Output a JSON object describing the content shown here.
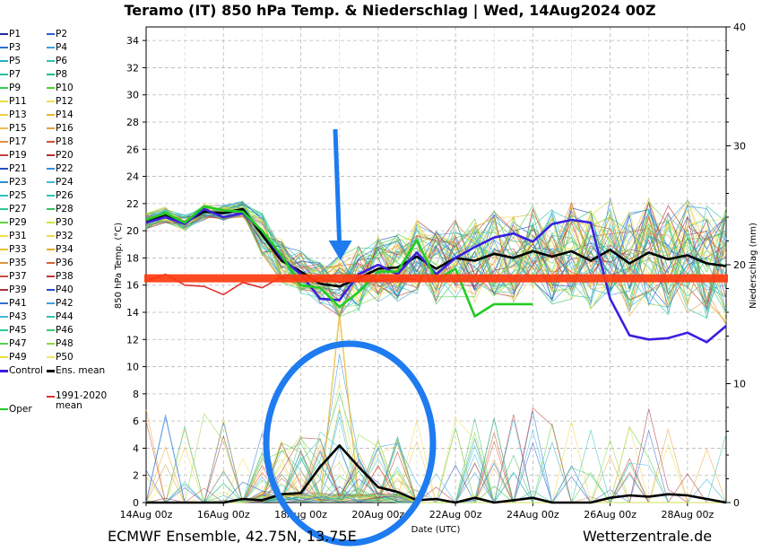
{
  "title": "Teramo  (IT)  850 hPa Temp. & Niederschlag | Wed, 14Aug2024 00Z",
  "footer": {
    "left": "ECMWF Ensemble, 42.75N, 13.75E",
    "right": "Wetterzentrale.de"
  },
  "chart_data": {
    "type": "line",
    "title": "Teramo  (IT)  850 hPa Temp. & Niederschlag | Wed, 14Aug2024 00Z",
    "xlabel": "Date (UTC)",
    "ylabel_left": "850 hPa Temp. (°C)",
    "ylabel_right": "Niederschlag (mm)",
    "x_ticks": [
      "14Aug 00z",
      "16Aug 00z",
      "18Aug 00z",
      "20Aug 00z",
      "22Aug 00z",
      "24Aug 00z",
      "26Aug 00z",
      "28Aug 00z"
    ],
    "x_range_days": [
      0,
      15
    ],
    "ylim_left": [
      0,
      35
    ],
    "ylim_right": [
      0,
      40
    ],
    "y_ticks_left": [
      0,
      2,
      4,
      6,
      8,
      10,
      12,
      14,
      16,
      18,
      20,
      22,
      24,
      26,
      28,
      30,
      32,
      34
    ],
    "y_ticks_right": [
      0,
      10,
      20,
      30,
      40
    ],
    "grid": true,
    "legend_position": "left",
    "legend": [
      {
        "label": "P1",
        "color": "#1f2aa8"
      },
      {
        "label": "P2",
        "color": "#2a5fd8"
      },
      {
        "label": "P3",
        "color": "#2b6fd0"
      },
      {
        "label": "P4",
        "color": "#3aa0e0"
      },
      {
        "label": "P5",
        "color": "#1fb0c8"
      },
      {
        "label": "P6",
        "color": "#2ac8b0"
      },
      {
        "label": "P7",
        "color": "#22c0a0"
      },
      {
        "label": "P8",
        "color": "#20c080"
      },
      {
        "label": "P9",
        "color": "#30d050"
      },
      {
        "label": "P10",
        "color": "#50d030"
      },
      {
        "label": "P11",
        "color": "#e8e040"
      },
      {
        "label": "P12",
        "color": "#f0e050"
      },
      {
        "label": "P13",
        "color": "#f0d040"
      },
      {
        "label": "P14",
        "color": "#e8b830"
      },
      {
        "label": "P15",
        "color": "#f0c050"
      },
      {
        "label": "P16",
        "color": "#e0a040"
      },
      {
        "label": "P17",
        "color": "#e09040"
      },
      {
        "label": "P18",
        "color": "#d05030"
      },
      {
        "label": "P19",
        "color": "#c84040"
      },
      {
        "label": "P20",
        "color": "#b83030"
      },
      {
        "label": "P21",
        "color": "#2050c0"
      },
      {
        "label": "P22",
        "color": "#3090e0"
      },
      {
        "label": "P23",
        "color": "#2a90c8"
      },
      {
        "label": "P24",
        "color": "#40b8e0"
      },
      {
        "label": "P25",
        "color": "#30c0c0"
      },
      {
        "label": "P26",
        "color": "#30c8a8"
      },
      {
        "label": "P27",
        "color": "#30c890"
      },
      {
        "label": "P28",
        "color": "#30c060"
      },
      {
        "label": "P29",
        "color": "#60d040"
      },
      {
        "label": "P30",
        "color": "#d0e040"
      },
      {
        "label": "P31",
        "color": "#f0e040"
      },
      {
        "label": "P32",
        "color": "#f0d850"
      },
      {
        "label": "P33",
        "color": "#e8c040"
      },
      {
        "label": "P34",
        "color": "#e8a830"
      },
      {
        "label": "P35",
        "color": "#d89840"
      },
      {
        "label": "P36",
        "color": "#d86030"
      },
      {
        "label": "P37",
        "color": "#c85040"
      },
      {
        "label": "P38",
        "color": "#c03030"
      },
      {
        "label": "P39",
        "color": "#a83040"
      },
      {
        "label": "P40",
        "color": "#2050c8"
      },
      {
        "label": "P41",
        "color": "#3070d0"
      },
      {
        "label": "P42",
        "color": "#40a0e0"
      },
      {
        "label": "P43",
        "color": "#40b8d8"
      },
      {
        "label": "P44",
        "color": "#30c0b0"
      },
      {
        "label": "P45",
        "color": "#30c898"
      },
      {
        "label": "P46",
        "color": "#40c870"
      },
      {
        "label": "P47",
        "color": "#50d050"
      },
      {
        "label": "P48",
        "color": "#90d840"
      },
      {
        "label": "P49",
        "color": "#e8e040"
      },
      {
        "label": "P50",
        "color": "#f0e860"
      },
      {
        "label": "Control",
        "color": "#3a1fe0"
      },
      {
        "label": "Ens. mean",
        "color": "#000000"
      },
      {
        "label": "1991-2020 mean",
        "color": "#e03030"
      },
      {
        "label": "Oper",
        "color": "#22cc22"
      }
    ],
    "series": [
      {
        "name": "Ens. mean",
        "axis": "left",
        "color": "#000000",
        "x_days": [
          0,
          0.5,
          1,
          1.5,
          2,
          2.5,
          3,
          3.5,
          4,
          4.5,
          5,
          5.5,
          6,
          6.5,
          7,
          7.5,
          8,
          8.5,
          9,
          9.5,
          10,
          10.5,
          11,
          11.5,
          12,
          12.5,
          13,
          13.5,
          14,
          14.5,
          15
        ],
        "values": [
          20.7,
          21.2,
          20.6,
          21.4,
          21.3,
          21.6,
          19.7,
          17.8,
          17.0,
          16.1,
          15.9,
          16.5,
          17.2,
          17.3,
          18.1,
          17.2,
          18.0,
          17.8,
          18.3,
          18.0,
          18.5,
          18.1,
          18.5,
          17.8,
          18.6,
          17.6,
          18.4,
          17.9,
          18.2,
          17.6,
          17.4
        ]
      },
      {
        "name": "Control",
        "axis": "left",
        "color": "#3a1fe0",
        "x_days": [
          0,
          0.5,
          1,
          1.5,
          2,
          2.5,
          3,
          3.5,
          4,
          4.5,
          5,
          5.5,
          6,
          6.5,
          7,
          7.5,
          8,
          8.5,
          9,
          9.5,
          10,
          10.5,
          11,
          11.5,
          12,
          12.5,
          13,
          13.5,
          14,
          14.5,
          15
        ],
        "values": [
          20.6,
          21.0,
          20.5,
          21.6,
          21.0,
          21.3,
          20.0,
          18.0,
          16.8,
          15.0,
          14.9,
          16.8,
          17.5,
          16.8,
          18.4,
          16.8,
          18.0,
          18.8,
          19.5,
          19.8,
          19.2,
          20.5,
          20.8,
          20.6,
          15.0,
          12.3,
          12.0,
          12.1,
          12.5,
          11.8,
          13.0
        ]
      },
      {
        "name": "Oper",
        "axis": "left",
        "color": "#22cc22",
        "x_days": [
          0,
          0.5,
          1,
          1.5,
          2,
          2.5,
          3,
          3.5,
          4,
          4.5,
          5,
          5.5,
          6,
          6.5,
          7,
          7.5,
          8,
          8.5,
          9,
          9.5,
          10
        ],
        "values": [
          20.8,
          21.3,
          20.6,
          21.8,
          21.5,
          21.4,
          20.0,
          18.2,
          16.0,
          15.8,
          14.4,
          15.5,
          17.0,
          17.0,
          19.3,
          16.4,
          17.2,
          13.7,
          14.6,
          14.6,
          14.6
        ]
      },
      {
        "name": "1991-2020 mean",
        "axis": "left",
        "color": "#e03030",
        "x_days": [
          0,
          0.5,
          1,
          1.5,
          2,
          2.5,
          3,
          3.5,
          4,
          4.5,
          5,
          5.5,
          6,
          6.5,
          7
        ],
        "values": [
          16.3,
          16.8,
          16.0,
          15.9,
          15.3,
          16.2,
          15.8,
          16.6,
          16.4,
          16.5,
          16.2,
          16.4,
          16.3,
          16.5,
          16.4
        ]
      },
      {
        "name": "Ens. mean precipitation",
        "axis": "right",
        "color": "#000000",
        "x_days": [
          0,
          1,
          2,
          2.5,
          3,
          3.5,
          4,
          4.5,
          5,
          5.5,
          6,
          6.5,
          7,
          7.5,
          8,
          8.5,
          9,
          9.5,
          10,
          10.5,
          11,
          11.5,
          12,
          12.5,
          13,
          13.5,
          14,
          14.5,
          15
        ],
        "values": [
          0,
          0,
          0,
          0.3,
          0.2,
          0.7,
          0.8,
          3.0,
          4.8,
          3.0,
          1.3,
          0.9,
          0.2,
          0.3,
          0,
          0.4,
          0,
          0.2,
          0.4,
          0,
          0,
          0,
          0.4,
          0.6,
          0.5,
          0.7,
          0.6,
          0.3,
          0
        ]
      }
    ],
    "annotations": [
      {
        "type": "horizontal_band",
        "value": 16.5,
        "color": "#ff3b10"
      },
      {
        "type": "arrow",
        "color": "#1e7bf0",
        "points_to_day": 5
      },
      {
        "type": "ellipse",
        "color": "#1e7bf0",
        "encloses": "precipitation peak around 19Aug-20Aug"
      }
    ]
  }
}
